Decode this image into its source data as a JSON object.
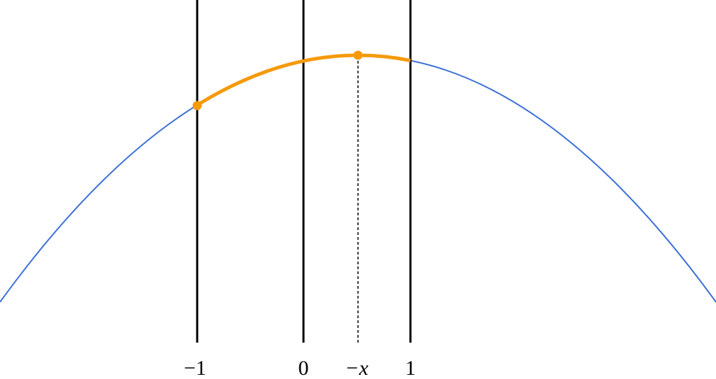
{
  "axis_labels": [
    "−1",
    "0",
    "−x",
    "1"
  ]
}
